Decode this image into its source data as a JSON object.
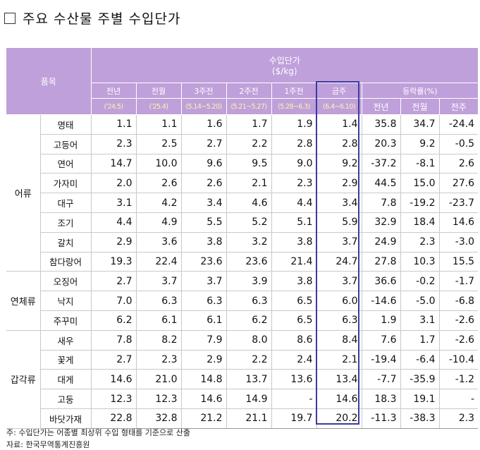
{
  "title": "주요 수산물 주별 수입단가",
  "header": {
    "item_label": "품목",
    "price_label": "수입단가",
    "unit_label": "($/kg)",
    "periods": [
      {
        "label": "전년",
        "sub": "('24.5)"
      },
      {
        "label": "전월",
        "sub": "('25.4)"
      },
      {
        "label": "3주전",
        "sub": "(5.14~5.20)"
      },
      {
        "label": "2주전",
        "sub": "(5.21~5.27)"
      },
      {
        "label": "1주전",
        "sub": "(5.28~6.3)"
      },
      {
        "label": "금주",
        "sub": "(6.4~6.10)"
      }
    ],
    "change_label": "등락률(%)",
    "change_cols": [
      "전년",
      "전월",
      "전주"
    ]
  },
  "groups": [
    {
      "category": "어류",
      "rows": [
        {
          "item": "명태",
          "values": [
            "1.1",
            "1.1",
            "1.6",
            "1.7",
            "1.9",
            "1.4"
          ],
          "changes": [
            "35.8",
            "34.7",
            "-24.4"
          ]
        },
        {
          "item": "고등어",
          "values": [
            "2.3",
            "2.5",
            "2.7",
            "2.2",
            "2.8",
            "2.8"
          ],
          "changes": [
            "20.3",
            "9.2",
            "-0.5"
          ]
        },
        {
          "item": "연어",
          "values": [
            "14.7",
            "10.0",
            "9.6",
            "9.5",
            "9.0",
            "9.2"
          ],
          "changes": [
            "-37.2",
            "-8.1",
            "2.6"
          ]
        },
        {
          "item": "가자미",
          "values": [
            "2.0",
            "2.6",
            "2.6",
            "2.1",
            "2.3",
            "2.9"
          ],
          "changes": [
            "44.5",
            "15.0",
            "27.6"
          ]
        },
        {
          "item": "대구",
          "values": [
            "3.1",
            "4.2",
            "3.4",
            "4.6",
            "4.4",
            "3.4"
          ],
          "changes": [
            "7.8",
            "-19.2",
            "-23.7"
          ]
        },
        {
          "item": "조기",
          "values": [
            "4.4",
            "4.9",
            "5.5",
            "5.2",
            "5.1",
            "5.9"
          ],
          "changes": [
            "32.9",
            "18.4",
            "14.6"
          ]
        },
        {
          "item": "갈치",
          "values": [
            "2.9",
            "3.6",
            "3.8",
            "3.2",
            "3.8",
            "3.7"
          ],
          "changes": [
            "24.9",
            "2.3",
            "-3.0"
          ]
        },
        {
          "item": "참다랑어",
          "values": [
            "19.3",
            "22.4",
            "23.6",
            "23.6",
            "21.4",
            "24.7"
          ],
          "changes": [
            "27.8",
            "10.3",
            "15.5"
          ]
        }
      ]
    },
    {
      "category": "연체류",
      "rows": [
        {
          "item": "오징어",
          "values": [
            "2.7",
            "3.7",
            "3.7",
            "3.9",
            "3.8",
            "3.7"
          ],
          "changes": [
            "36.6",
            "-0.2",
            "-1.7"
          ]
        },
        {
          "item": "낙지",
          "values": [
            "7.0",
            "6.3",
            "6.3",
            "6.3",
            "6.5",
            "6.0"
          ],
          "changes": [
            "-14.6",
            "-5.0",
            "-6.8"
          ]
        },
        {
          "item": "주꾸미",
          "values": [
            "6.2",
            "6.1",
            "6.1",
            "6.2",
            "6.5",
            "6.3"
          ],
          "changes": [
            "1.9",
            "3.1",
            "-2.6"
          ]
        }
      ]
    },
    {
      "category": "갑각류",
      "rows": [
        {
          "item": "새우",
          "values": [
            "7.8",
            "8.2",
            "7.9",
            "8.0",
            "8.6",
            "8.4"
          ],
          "changes": [
            "7.6",
            "1.7",
            "-2.6"
          ]
        },
        {
          "item": "꽃게",
          "values": [
            "2.7",
            "2.3",
            "2.9",
            "2.2",
            "2.4",
            "2.1"
          ],
          "changes": [
            "-19.4",
            "-6.4",
            "-10.4"
          ]
        },
        {
          "item": "대게",
          "values": [
            "14.6",
            "21.0",
            "14.8",
            "13.7",
            "13.6",
            "13.4"
          ],
          "changes": [
            "-7.7",
            "-35.9",
            "-1.2"
          ]
        },
        {
          "item": "고둥",
          "values": [
            "12.3",
            "12.3",
            "14.6",
            "14.9",
            "-",
            "14.6"
          ],
          "changes": [
            "18.3",
            "19.1",
            "-"
          ]
        },
        {
          "item": "바닷가재",
          "values": [
            "22.8",
            "32.8",
            "21.2",
            "21.1",
            "19.7",
            "20.2"
          ],
          "changes": [
            "-11.3",
            "-38.3",
            "2.3"
          ]
        }
      ]
    }
  ],
  "footnotes": {
    "note": "주: 수입단가는 어종별 최상위 수입 형태를 기준으로 산출",
    "source": "자료: 한국무역통계진흥원"
  }
}
